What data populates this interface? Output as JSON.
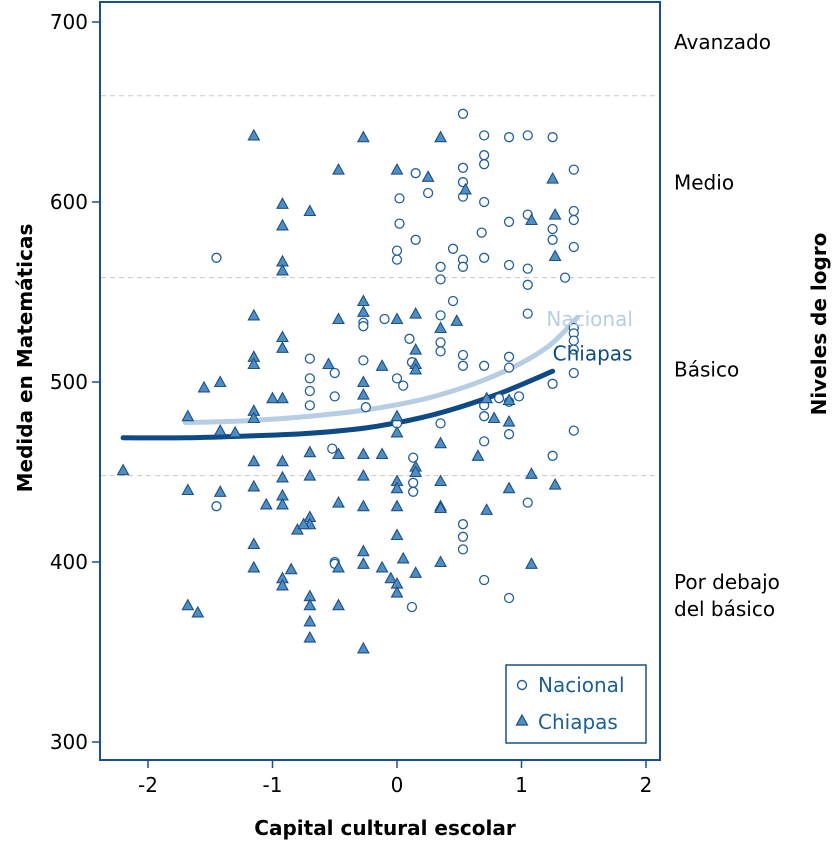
{
  "chart_data": {
    "type": "scatter",
    "title": "",
    "xlabel": "Capital cultural escolar",
    "ylabel": "Medida en Matemáticas",
    "y2label": "Niveles de logro",
    "xlim": [
      -2.3,
      2.1
    ],
    "ylim": [
      290,
      710
    ],
    "xticks": [
      -2,
      -1,
      0,
      1,
      2
    ],
    "xtick_labels": [
      "-2",
      "-1",
      "0",
      "1",
      "2"
    ],
    "yticks": [
      300,
      400,
      500,
      600,
      700
    ],
    "ytick_labels": [
      "300",
      "400",
      "500",
      "600",
      "700"
    ],
    "grid": false,
    "legend_position": "bottom-right",
    "colors": {
      "nacional_marker": "#1f5f9e",
      "chiapas_fill": "#4a90c4",
      "chiapas_stroke": "#1f4e8a",
      "nacional_fit": "#b7cde3",
      "chiapas_fit": "#0d4a86",
      "axis": "#1a4f8f",
      "cutoff": "#c8c8c8"
    },
    "levels": [
      {
        "label": "Avanzado",
        "y": 685
      },
      {
        "label": "Medio",
        "y": 607
      },
      {
        "label": "Básico",
        "y": 503
      },
      {
        "label": "Por debajo\ndel básico",
        "y": 385
      }
    ],
    "level_cutoffs": [
      659,
      558,
      448
    ],
    "legend": [
      {
        "name": "Nacional",
        "marker": "circle"
      },
      {
        "name": "Chiapas",
        "marker": "triangle"
      }
    ],
    "fit_labels": [
      {
        "text": "Nacional",
        "x": 1.2,
        "y": 531
      },
      {
        "text": "Chiapas",
        "x": 1.25,
        "y": 512
      }
    ],
    "series": [
      {
        "name": "Nacional",
        "marker": "circle",
        "points": [
          [
            -1.45,
            569
          ],
          [
            -1.45,
            431
          ],
          [
            -0.7,
            513
          ],
          [
            -0.7,
            502
          ],
          [
            -0.7,
            495
          ],
          [
            -0.7,
            487
          ],
          [
            -0.52,
            463
          ],
          [
            -0.5,
            505
          ],
          [
            -0.5,
            492
          ],
          [
            -0.5,
            400
          ],
          [
            -0.5,
            399
          ],
          [
            -0.27,
            533
          ],
          [
            -0.27,
            531
          ],
          [
            -0.27,
            512
          ],
          [
            -0.25,
            486
          ],
          [
            -0.1,
            535
          ],
          [
            0,
            573
          ],
          [
            0,
            568
          ],
          [
            0,
            502
          ],
          [
            0,
            477
          ],
          [
            0.02,
            602
          ],
          [
            0.02,
            588
          ],
          [
            0.05,
            498
          ],
          [
            0.1,
            524
          ],
          [
            0.12,
            511
          ],
          [
            0.13,
            458
          ],
          [
            0.13,
            444
          ],
          [
            0.13,
            439
          ],
          [
            0.15,
            616
          ],
          [
            0.15,
            579
          ],
          [
            0.12,
            375
          ],
          [
            0.25,
            605
          ],
          [
            0.35,
            564
          ],
          [
            0.35,
            557
          ],
          [
            0.35,
            537
          ],
          [
            0.35,
            522
          ],
          [
            0.35,
            517
          ],
          [
            0.35,
            477
          ],
          [
            0.45,
            574
          ],
          [
            0.45,
            545
          ],
          [
            0.53,
            649
          ],
          [
            0.53,
            619
          ],
          [
            0.53,
            611
          ],
          [
            0.53,
            603
          ],
          [
            0.53,
            568
          ],
          [
            0.53,
            564
          ],
          [
            0.53,
            515
          ],
          [
            0.53,
            509
          ],
          [
            0.53,
            421
          ],
          [
            0.53,
            414
          ],
          [
            0.53,
            407
          ],
          [
            0.68,
            583
          ],
          [
            0.7,
            637
          ],
          [
            0.7,
            626
          ],
          [
            0.7,
            621
          ],
          [
            0.7,
            600
          ],
          [
            0.7,
            569
          ],
          [
            0.7,
            509
          ],
          [
            0.7,
            487
          ],
          [
            0.7,
            481
          ],
          [
            0.7,
            467
          ],
          [
            0.7,
            390
          ],
          [
            0.82,
            491
          ],
          [
            0.9,
            636
          ],
          [
            0.9,
            589
          ],
          [
            0.9,
            565
          ],
          [
            0.9,
            514
          ],
          [
            0.9,
            508
          ],
          [
            0.9,
            489
          ],
          [
            0.9,
            471
          ],
          [
            0.9,
            380
          ],
          [
            0.98,
            492
          ],
          [
            1.05,
            637
          ],
          [
            1.05,
            593
          ],
          [
            1.05,
            563
          ],
          [
            1.05,
            554
          ],
          [
            1.05,
            538
          ],
          [
            1.05,
            433
          ],
          [
            1.25,
            636
          ],
          [
            1.25,
            585
          ],
          [
            1.25,
            579
          ],
          [
            1.25,
            499
          ],
          [
            1.25,
            459
          ],
          [
            1.35,
            558
          ],
          [
            1.42,
            618
          ],
          [
            1.42,
            595
          ],
          [
            1.42,
            590
          ],
          [
            1.42,
            575
          ],
          [
            1.42,
            530
          ],
          [
            1.42,
            527
          ],
          [
            1.42,
            523
          ],
          [
            1.42,
            518
          ],
          [
            1.42,
            505
          ],
          [
            1.42,
            473
          ]
        ]
      },
      {
        "name": "Chiapas",
        "marker": "triangle",
        "points": [
          [
            -2.2,
            451
          ],
          [
            -1.68,
            481
          ],
          [
            -1.68,
            440
          ],
          [
            -1.68,
            376
          ],
          [
            -1.6,
            372
          ],
          [
            -1.55,
            497
          ],
          [
            -1.42,
            500
          ],
          [
            -1.42,
            473
          ],
          [
            -1.42,
            439
          ],
          [
            -1.3,
            472
          ],
          [
            -1.15,
            637
          ],
          [
            -1.15,
            537
          ],
          [
            -1.15,
            514
          ],
          [
            -1.15,
            510
          ],
          [
            -1.15,
            484
          ],
          [
            -1.15,
            480
          ],
          [
            -1.15,
            456
          ],
          [
            -1.15,
            442
          ],
          [
            -1.15,
            410
          ],
          [
            -1.15,
            397
          ],
          [
            -0.92,
            599
          ],
          [
            -0.92,
            587
          ],
          [
            -0.92,
            567
          ],
          [
            -0.92,
            562
          ],
          [
            -0.92,
            525
          ],
          [
            -0.92,
            519
          ],
          [
            -0.92,
            491
          ],
          [
            -0.92,
            456
          ],
          [
            -0.92,
            447
          ],
          [
            -0.92,
            437
          ],
          [
            -0.92,
            391
          ],
          [
            -0.92,
            387
          ],
          [
            -0.92,
            432
          ],
          [
            -1.05,
            432
          ],
          [
            -1.0,
            491
          ],
          [
            -0.7,
            595
          ],
          [
            -0.7,
            461
          ],
          [
            -0.7,
            448
          ],
          [
            -0.7,
            425
          ],
          [
            -0.7,
            421
          ],
          [
            -0.7,
            381
          ],
          [
            -0.7,
            376
          ],
          [
            -0.7,
            367
          ],
          [
            -0.7,
            358
          ],
          [
            -0.8,
            418
          ],
          [
            -0.75,
            421
          ],
          [
            -0.85,
            396
          ],
          [
            -0.55,
            510
          ],
          [
            -0.47,
            618
          ],
          [
            -0.47,
            535
          ],
          [
            -0.47,
            460
          ],
          [
            -0.47,
            433
          ],
          [
            -0.47,
            397
          ],
          [
            -0.47,
            376
          ],
          [
            -0.27,
            636
          ],
          [
            -0.27,
            545
          ],
          [
            -0.27,
            539
          ],
          [
            -0.27,
            500
          ],
          [
            -0.27,
            493
          ],
          [
            -0.27,
            460
          ],
          [
            -0.27,
            448
          ],
          [
            -0.27,
            431
          ],
          [
            -0.27,
            406
          ],
          [
            -0.27,
            399
          ],
          [
            -0.27,
            352
          ],
          [
            -0.12,
            509
          ],
          [
            -0.12,
            460
          ],
          [
            -0.12,
            397
          ],
          [
            -0.05,
            391
          ],
          [
            0,
            618
          ],
          [
            0,
            535
          ],
          [
            0,
            481
          ],
          [
            0,
            472
          ],
          [
            0,
            445
          ],
          [
            0,
            441
          ],
          [
            0,
            431
          ],
          [
            0,
            415
          ],
          [
            0,
            388
          ],
          [
            0,
            383
          ],
          [
            0.05,
            402
          ],
          [
            0.15,
            538
          ],
          [
            0.15,
            518
          ],
          [
            0.15,
            510
          ],
          [
            0.15,
            507
          ],
          [
            0.15,
            453
          ],
          [
            0.15,
            450
          ],
          [
            0.15,
            394
          ],
          [
            0.25,
            614
          ],
          [
            0.35,
            636
          ],
          [
            0.35,
            530
          ],
          [
            0.35,
            466
          ],
          [
            0.35,
            445
          ],
          [
            0.35,
            431
          ],
          [
            0.35,
            430
          ],
          [
            0.35,
            400
          ],
          [
            0.48,
            534
          ],
          [
            0.55,
            607
          ],
          [
            0.65,
            459
          ],
          [
            0.72,
            491
          ],
          [
            0.72,
            429
          ],
          [
            0.78,
            480
          ],
          [
            0.9,
            490
          ],
          [
            0.9,
            478
          ],
          [
            0.9,
            441
          ],
          [
            1.08,
            590
          ],
          [
            1.08,
            449
          ],
          [
            1.08,
            399
          ],
          [
            1.25,
            613
          ],
          [
            1.27,
            593
          ],
          [
            1.27,
            570
          ],
          [
            1.27,
            443
          ]
        ]
      }
    ],
    "fit_lines": [
      {
        "name": "Nacional",
        "points": [
          [
            -1.7,
            477.5
          ],
          [
            -1.2,
            478.5
          ],
          [
            -0.7,
            481
          ],
          [
            -0.2,
            485
          ],
          [
            0.3,
            492
          ],
          [
            0.8,
            504
          ],
          [
            1.2,
            519
          ],
          [
            1.45,
            536
          ]
        ]
      },
      {
        "name": "Chiapas",
        "points": [
          [
            -2.2,
            469
          ],
          [
            -1.7,
            469
          ],
          [
            -1.2,
            470
          ],
          [
            -0.7,
            471.5
          ],
          [
            -0.2,
            475
          ],
          [
            0.3,
            482
          ],
          [
            0.8,
            493
          ],
          [
            1.25,
            506
          ]
        ]
      }
    ]
  }
}
